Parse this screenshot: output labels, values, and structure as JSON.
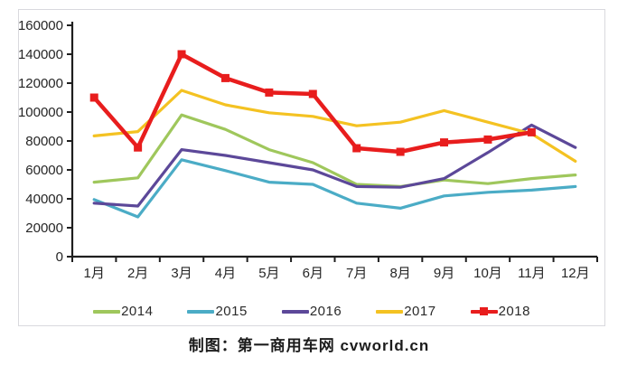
{
  "chart_data": {
    "type": "line",
    "title": "",
    "xlabel": "",
    "ylabel": "",
    "categories": [
      "1月",
      "2月",
      "3月",
      "4月",
      "5月",
      "6月",
      "7月",
      "8月",
      "9月",
      "10月",
      "11月",
      "12月"
    ],
    "series": [
      {
        "name": "2014",
        "color": "#9FC75C",
        "marker": "none",
        "values": [
          51500,
          54500,
          98000,
          88000,
          74000,
          65000,
          50000,
          48500,
          53000,
          50500,
          54000,
          56500
        ]
      },
      {
        "name": "2015",
        "color": "#4BACC6",
        "marker": "none",
        "values": [
          39500,
          27500,
          67000,
          59500,
          51500,
          50000,
          37000,
          33500,
          42000,
          44500,
          46000,
          48500
        ]
      },
      {
        "name": "2016",
        "color": "#5C4899",
        "marker": "none",
        "values": [
          37000,
          35000,
          74000,
          70000,
          65000,
          60000,
          48500,
          48000,
          54000,
          72000,
          91000,
          75500
        ]
      },
      {
        "name": "2017",
        "color": "#F4C222",
        "marker": "none",
        "values": [
          83500,
          86500,
          115000,
          105000,
          99500,
          97000,
          90500,
          93000,
          101000,
          93000,
          85000,
          66000
        ]
      },
      {
        "name": "2018",
        "color": "#E81D1D",
        "marker": "square",
        "values": [
          110000,
          75500,
          140000,
          123500,
          113500,
          112500,
          75000,
          72500,
          79000,
          81000,
          86000,
          null
        ]
      }
    ],
    "ylim": [
      0,
      160000
    ],
    "ytick_step": 20000,
    "grid": false,
    "legend_position": "bottom"
  },
  "colors": {
    "axis": "#1f1f1f",
    "tick_label": "#262626",
    "frame": "#d9d9de"
  },
  "caption": {
    "text": "制图：第一商用车网 cvworld.cn"
  }
}
